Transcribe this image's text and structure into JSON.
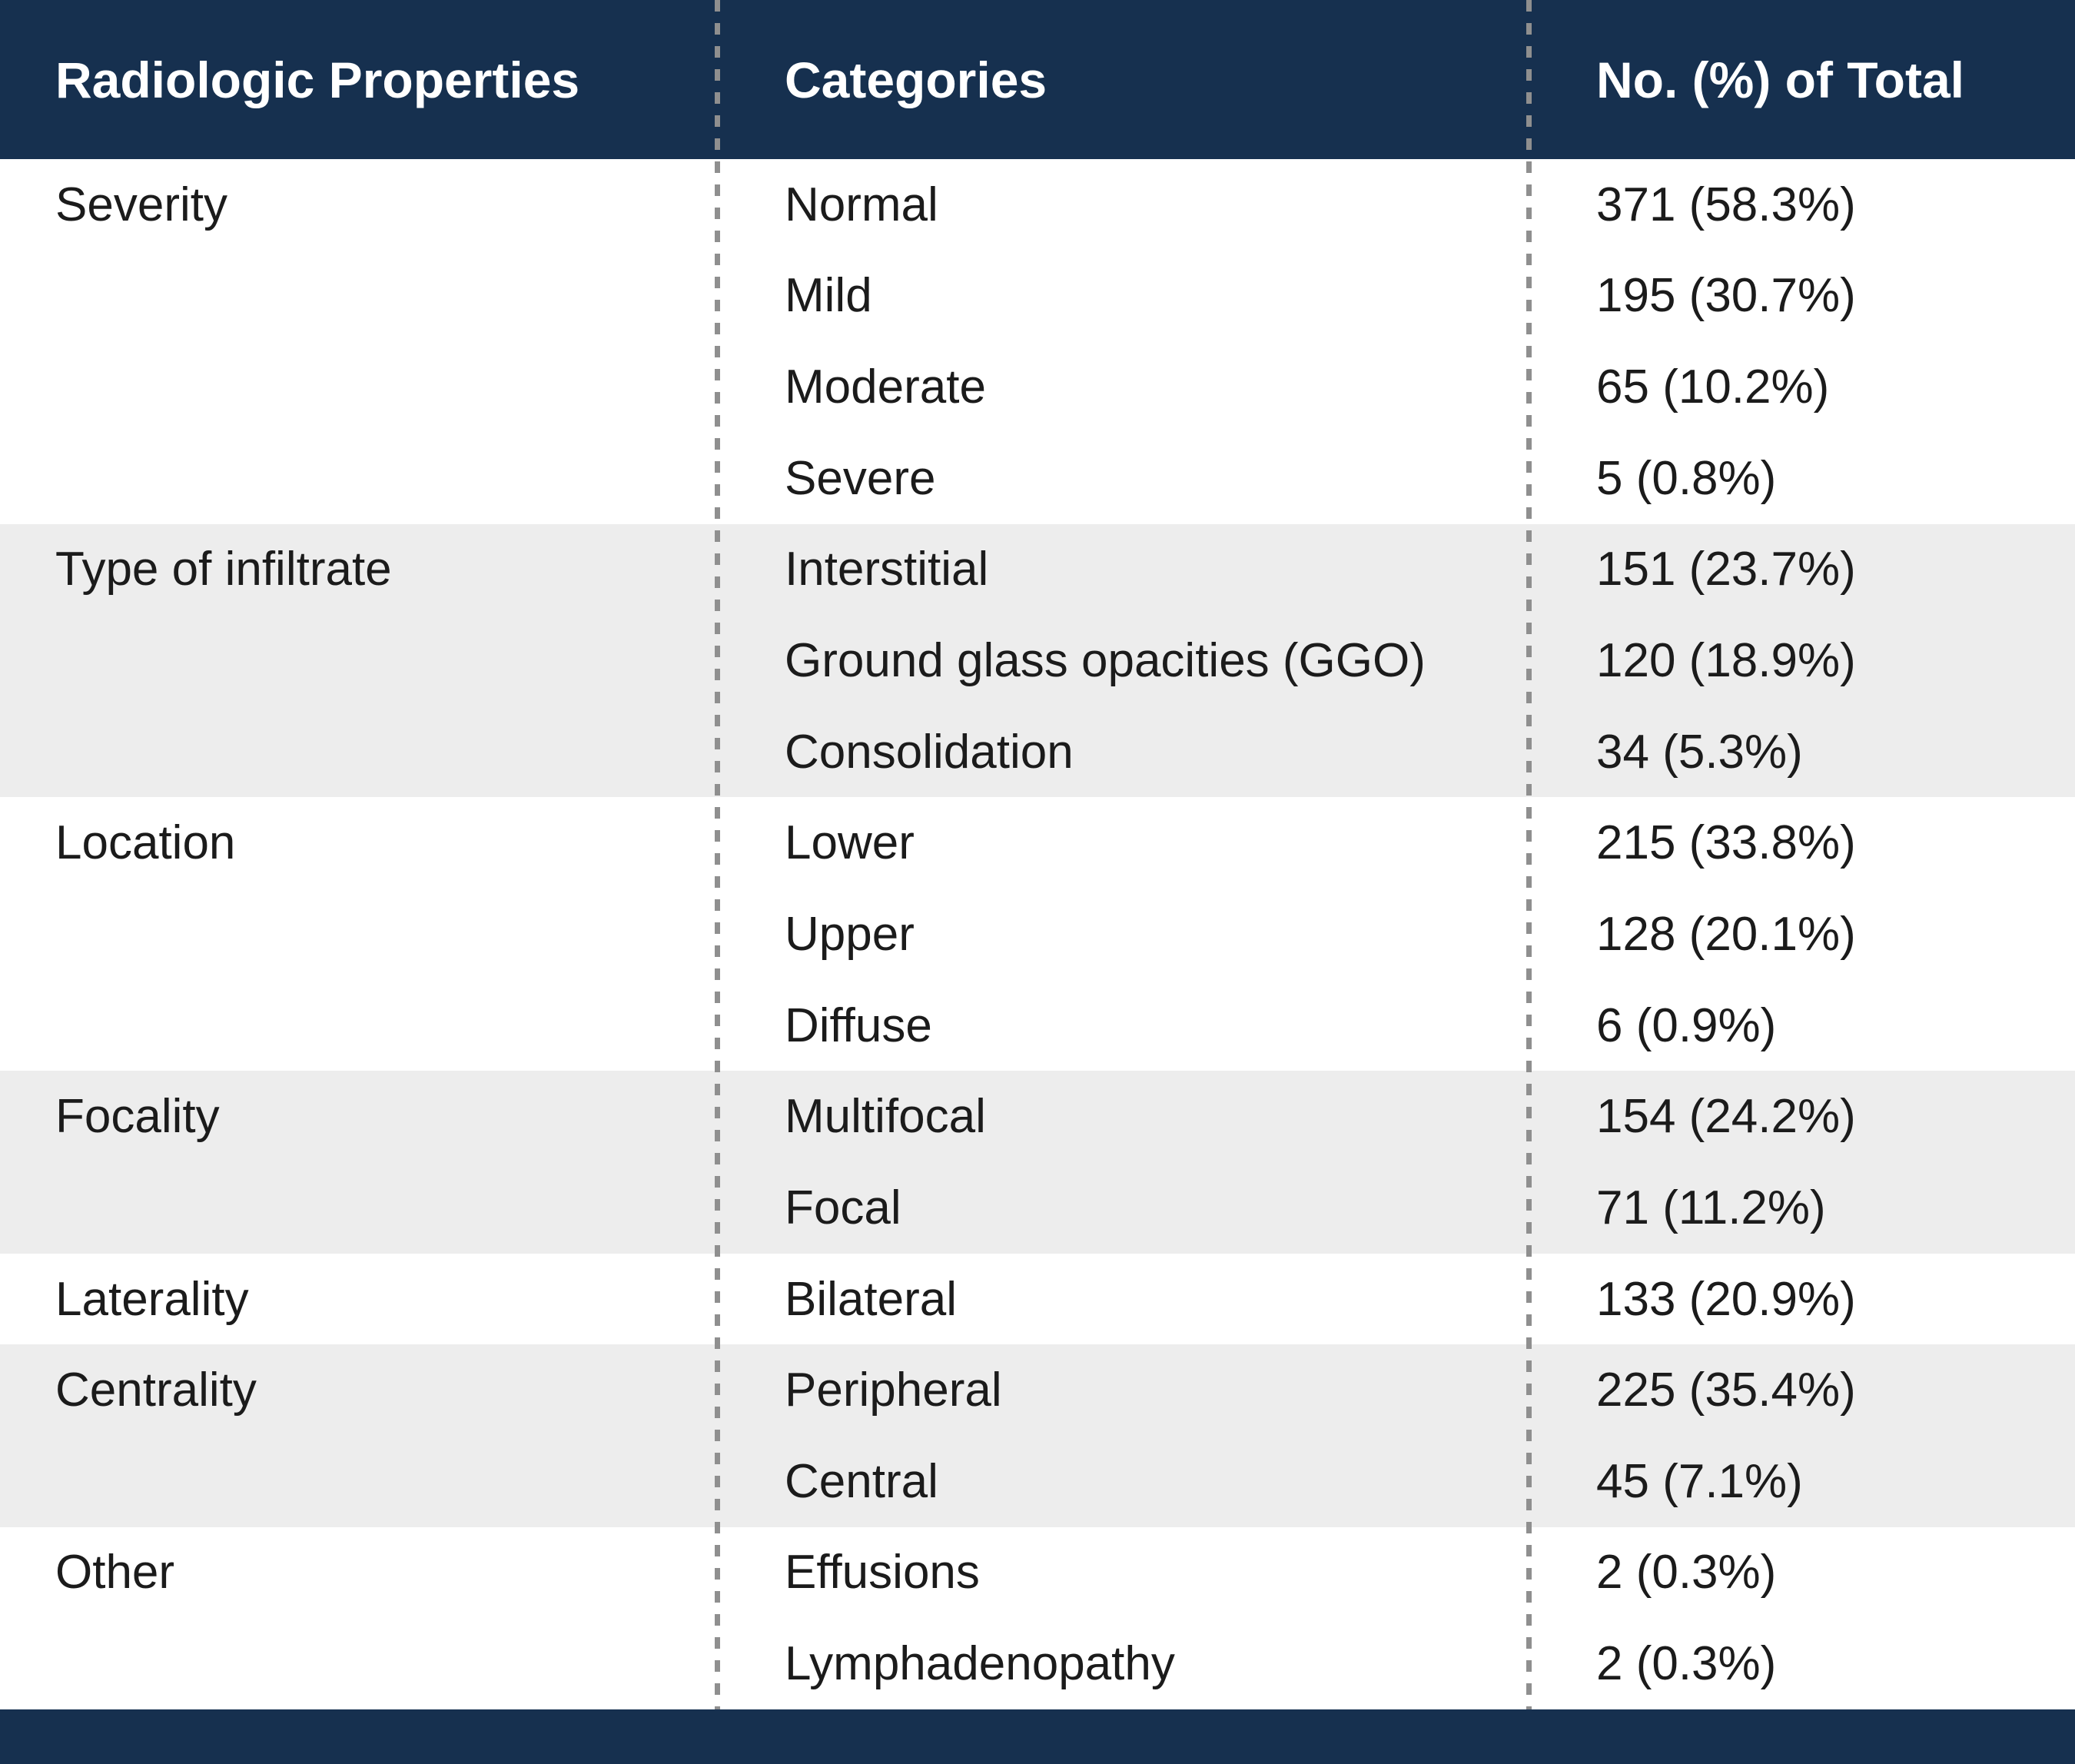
{
  "table": {
    "columns": [
      "Radiologic Properties",
      "Categories",
      "No. (%) of Total"
    ],
    "groups": [
      {
        "property": "Severity",
        "rows": [
          {
            "category": "Normal",
            "value": "371 (58.3%)"
          },
          {
            "category": "Mild",
            "value": "195 (30.7%)"
          },
          {
            "category": "Moderate",
            "value": "65 (10.2%)"
          },
          {
            "category": "Severe",
            "value": "5 (0.8%)"
          }
        ]
      },
      {
        "property": "Type of infiltrate",
        "rows": [
          {
            "category": "Interstitial",
            "value": "151 (23.7%)"
          },
          {
            "category": "Ground glass opacities (GGO)",
            "value": "120 (18.9%)"
          },
          {
            "category": "Consolidation",
            "value": "34 (5.3%)"
          }
        ]
      },
      {
        "property": "Location",
        "rows": [
          {
            "category": "Lower",
            "value": "215 (33.8%)"
          },
          {
            "category": "Upper",
            "value": "128 (20.1%)"
          },
          {
            "category": "Diffuse",
            "value": "6 (0.9%)"
          }
        ]
      },
      {
        "property": "Focality",
        "rows": [
          {
            "category": "Multifocal",
            "value": "154 (24.2%)"
          },
          {
            "category": "Focal",
            "value": "71 (11.2%)"
          }
        ]
      },
      {
        "property": "Laterality",
        "rows": [
          {
            "category": "Bilateral",
            "value": "133 (20.9%)"
          }
        ]
      },
      {
        "property": "Centrality",
        "rows": [
          {
            "category": "Peripheral",
            "value": "225 (35.4%)"
          },
          {
            "category": "Central",
            "value": "45 (7.1%)"
          }
        ]
      },
      {
        "property": "Other",
        "rows": [
          {
            "category": "Effusions",
            "value": "2 (0.3%)"
          },
          {
            "category": "Lymphadenopathy",
            "value": "2 (0.3%)"
          }
        ]
      }
    ]
  },
  "colors": {
    "header_bg": "#16304f",
    "header_text": "#ffffff",
    "row_bg": "#ffffff",
    "row_alt_bg": "#ededed",
    "divider": "#8f8f8f",
    "body_text": "#1b1b1b"
  }
}
